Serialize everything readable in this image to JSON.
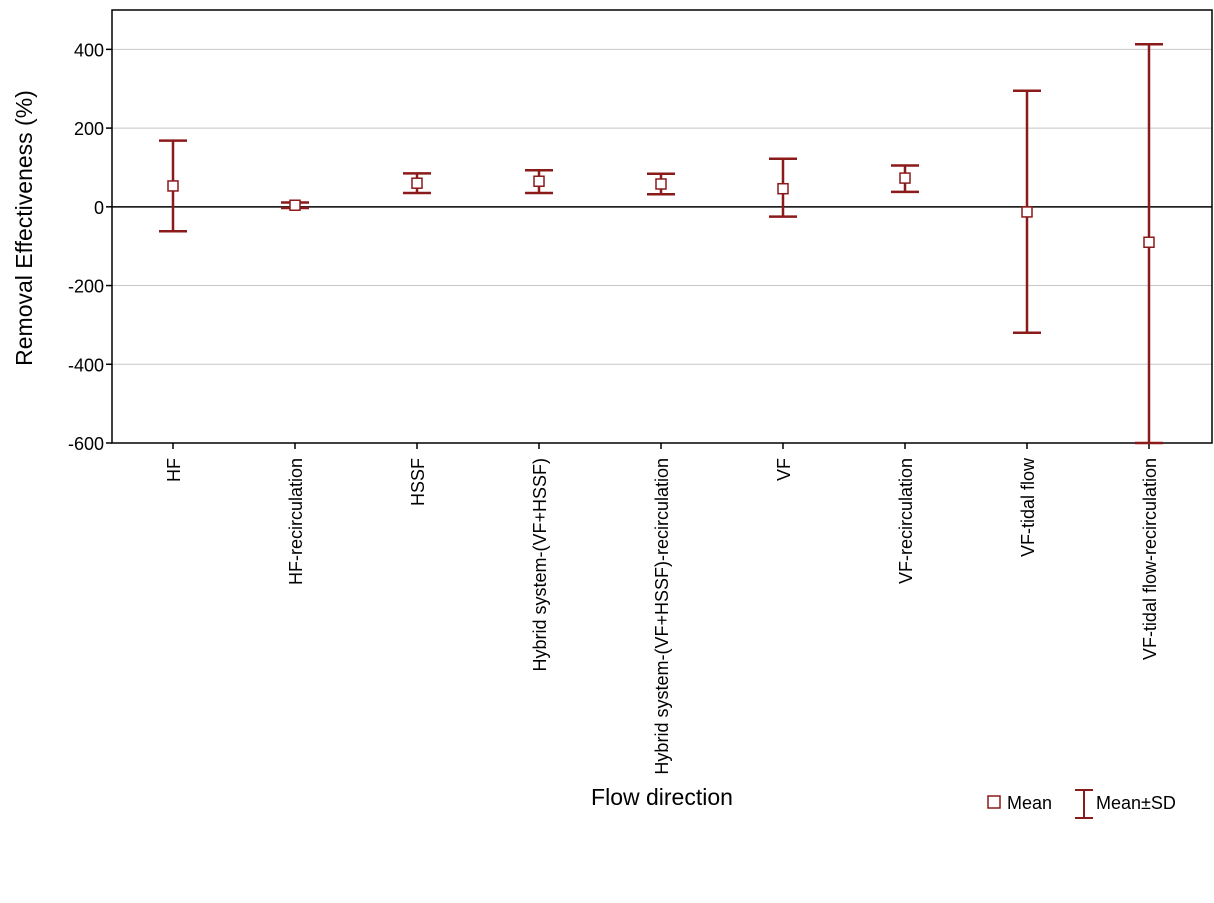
{
  "chart_data": {
    "type": "scatter",
    "title": "",
    "xlabel": "Flow direction",
    "ylabel": "Removal Effectiveness (%)",
    "ylim": [
      -600,
      500
    ],
    "yticks": [
      -600,
      -400,
      -200,
      0,
      200,
      400
    ],
    "ytick_labels": [
      "-600",
      "-400",
      "-200",
      "0",
      "200",
      "400"
    ],
    "grid": true,
    "legend_placement": "bottom-right",
    "categories": [
      "HF",
      "HF-recirculation",
      "HSSF",
      "Hybrid system-(VF+HSSF)",
      "Hybrid system-(VF+HSSF)-recirculation",
      "VF",
      "VF-recirculation",
      "VF-tidal flow",
      "VF-tidal flow-recirculation"
    ],
    "series": [
      {
        "name": "Mean",
        "values": [
          53,
          4,
          60,
          65,
          58,
          46,
          73,
          -13,
          -90
        ]
      },
      {
        "name": "Mean±SD",
        "lower": [
          -62,
          -3,
          35,
          35,
          32,
          -25,
          38,
          -320,
          -600
        ],
        "upper": [
          168,
          11,
          85,
          93,
          84,
          122,
          105,
          295,
          413
        ]
      }
    ],
    "colors": {
      "series": "#8b1a1a",
      "marker_fill": "#ffffff",
      "grid": "#c8c8c8"
    }
  }
}
